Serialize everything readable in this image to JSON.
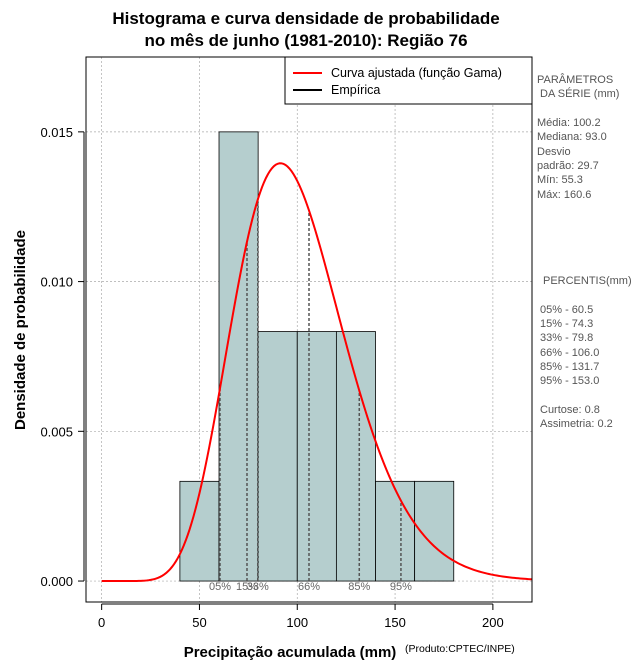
{
  "chart_data": {
    "type": "histogram",
    "title_line1": "Histograma e curva densidade de probabilidade",
    "title_line2": "no mês de junho (1981-2010): Região 76",
    "xlabel": "Precipitação acumulada (mm)",
    "ylabel": "Densidade de probabilidade",
    "credit": "(Produto:CPTEC/INPE)",
    "xlim": [
      -8,
      220
    ],
    "ylim": [
      -0.0007,
      0.0175
    ],
    "x_ticks": [
      0,
      50,
      100,
      150,
      200
    ],
    "x_tick_labels": [
      "0",
      "50",
      "100",
      "150",
      "200"
    ],
    "y_ticks": [
      0.0,
      0.005,
      0.01,
      0.015
    ],
    "y_tick_labels": [
      "0.000",
      "0.005",
      "0.010",
      "0.015"
    ],
    "grid": true,
    "bins": [
      {
        "start": 40,
        "end": 60,
        "density": 0.00333
      },
      {
        "start": 60,
        "end": 80,
        "density": 0.015
      },
      {
        "start": 80,
        "end": 100,
        "density": 0.00833
      },
      {
        "start": 100,
        "end": 120,
        "density": 0.00833
      },
      {
        "start": 120,
        "end": 140,
        "density": 0.00833
      },
      {
        "start": 140,
        "end": 160,
        "density": 0.00333
      },
      {
        "start": 160,
        "end": 180,
        "density": 0.00333
      }
    ],
    "gamma_fit": {
      "mean": 100.2,
      "sd": 29.7
    },
    "percentile_lines": [
      {
        "label": "05%",
        "value": 60.5
      },
      {
        "label": "15%",
        "value": 74.3
      },
      {
        "label": "33%",
        "value": 79.8
      },
      {
        "label": "66%",
        "value": 106.0
      },
      {
        "label": "85%",
        "value": 131.7
      },
      {
        "label": "95%",
        "value": 153.0
      }
    ],
    "legend": [
      {
        "label": "Curva ajustada (função Gama)",
        "color": "#ff0000"
      },
      {
        "label": "Empírica",
        "color": "#000000"
      }
    ],
    "legend_placement": "top-right",
    "colors": {
      "bar_fill": "#b5cece",
      "curve": "#ff0000",
      "grid": "#aaaaaa",
      "percentile": "#555555"
    }
  },
  "params_panel": {
    "title_line1": "PARÂMETROS",
    "title_line2": "DA SÉRIE (mm)",
    "lines": [
      "Média:  100.2",
      "Mediana:  93.0",
      "Desvio",
      "padrão:  29.7",
      "Mín:  55.3",
      "Máx:  160.6"
    ]
  },
  "percentis_panel": {
    "title": "PERCENTIS(mm)",
    "lines": [
      "05% -  60.5",
      "15% -  74.3",
      "33% -  79.8",
      "66% - 106.0",
      "85% - 131.7",
      "95% - 153.0"
    ],
    "extra_lines": [
      "Curtose:  0.8",
      "Assimetria:  0.2"
    ]
  }
}
